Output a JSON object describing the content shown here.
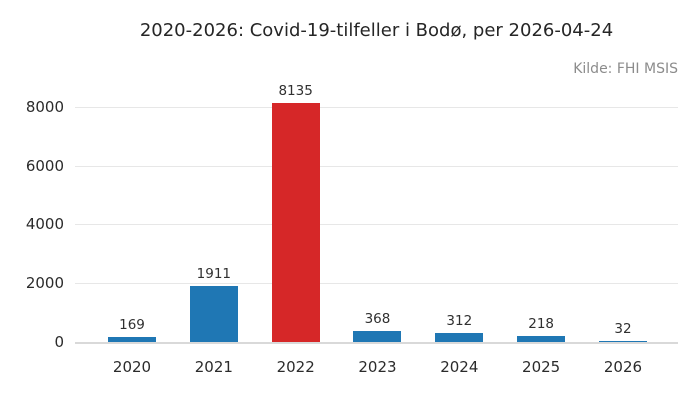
{
  "header": {
    "title": "2020-2026: Covid-19-tilfeller i Bodø, per 2026-04-24",
    "source": "Kilde: FHI MSIS"
  },
  "chart_data": {
    "type": "bar",
    "title": "2020-2026: Covid-19-tilfeller i Bodø, per 2026-04-24",
    "source_annotation": "Kilde: FHI MSIS",
    "categories": [
      "2020",
      "2021",
      "2022",
      "2023",
      "2024",
      "2025",
      "2026"
    ],
    "values": [
      169,
      1911,
      8135,
      368,
      312,
      218,
      32
    ],
    "value_labels": [
      "169",
      "1911",
      "8135",
      "368",
      "312",
      "218",
      "32"
    ],
    "bar_colors": [
      "#1f77b4",
      "#1f77b4",
      "#d62728",
      "#1f77b4",
      "#1f77b4",
      "#1f77b4",
      "#1f77b4"
    ],
    "xlabel": "",
    "ylabel": "",
    "yticks": [
      0,
      2000,
      4000,
      6000,
      8000
    ],
    "ylim": [
      0,
      8500
    ],
    "grid": "horizontal",
    "legend": "none",
    "colors": {
      "bar_default": "#1f77b4",
      "bar_highlight": "#d62728",
      "gridline": "#e7e7e7",
      "axis_line": "#d9d9d9",
      "text": "#2b2b2b",
      "source_text": "#8c8c8c",
      "background": "#ffffff"
    }
  }
}
